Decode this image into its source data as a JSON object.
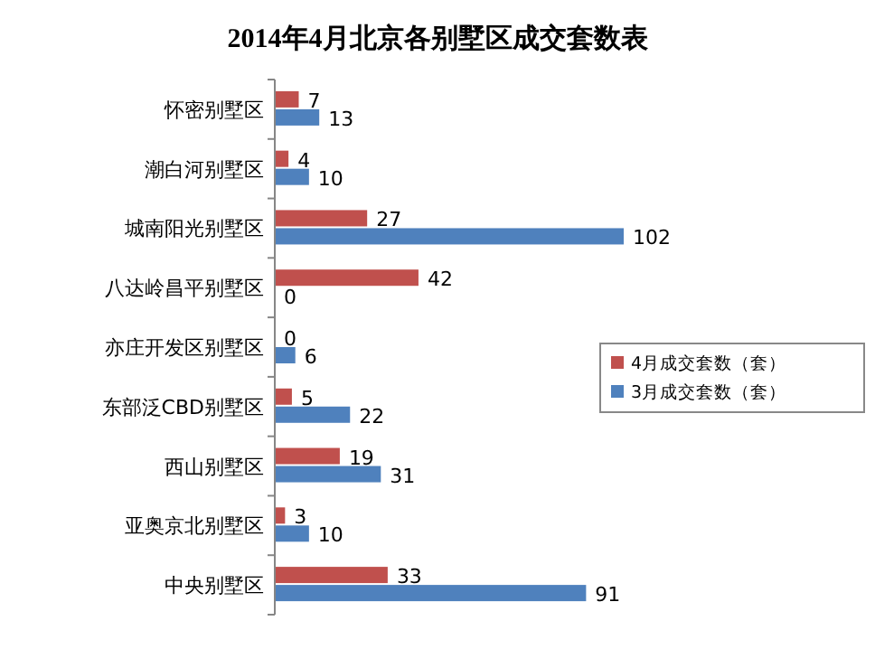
{
  "chart_data": {
    "type": "bar",
    "orientation": "horizontal",
    "title": "2014年4月北京各别墅区成交套数表",
    "categories": [
      "怀密别墅区",
      "潮白河别墅区",
      "城南阳光别墅区",
      "八达岭昌平别墅区",
      "亦庄开发区别墅区",
      "东部泛CBD别墅区",
      "西山别墅区",
      "亚奥京北别墅区",
      "中央别墅区"
    ],
    "series": [
      {
        "name": "4月成交套数（套）",
        "color": "#c0504d",
        "values": [
          7,
          4,
          27,
          42,
          0,
          5,
          19,
          3,
          33
        ]
      },
      {
        "name": "3月成交套数（套）",
        "color": "#4f81bd",
        "values": [
          13,
          10,
          102,
          0,
          6,
          22,
          31,
          10,
          91
        ]
      }
    ],
    "data_labels": true,
    "legend": "right"
  }
}
